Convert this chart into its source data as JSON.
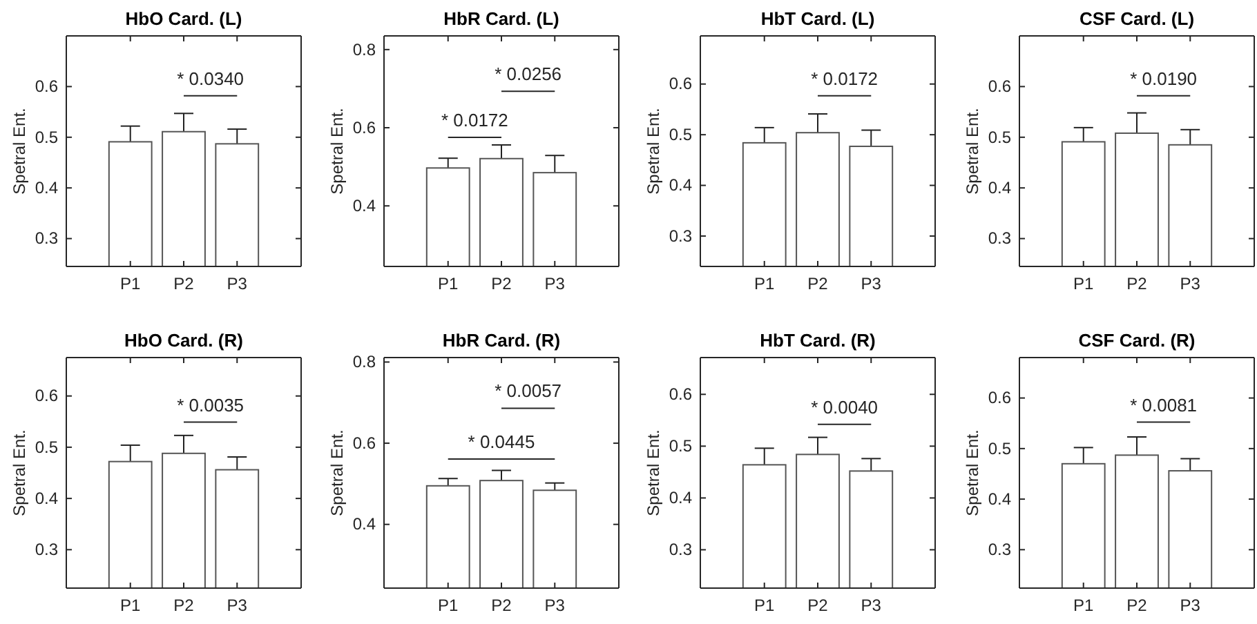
{
  "chart_data": [
    {
      "type": "bar",
      "title": "HbO Card. (L)",
      "ylabel": "Spetral Ent.",
      "categories": [
        "P1",
        "P2",
        "P3"
      ],
      "values": [
        0.491,
        0.511,
        0.487
      ],
      "errors": [
        0.031,
        0.036,
        0.029
      ],
      "color": "#ffffff",
      "ylim": [
        0.245,
        0.7
      ],
      "yticks": [
        0.3,
        0.4,
        0.5,
        0.6
      ],
      "annotations": [
        "* 0.0340"
      ]
    },
    {
      "type": "bar",
      "title": "HbR Card. (L)",
      "ylabel": "Spetral Ent.",
      "categories": [
        "P1",
        "P2",
        "P3"
      ],
      "values": [
        0.497,
        0.521,
        0.485
      ],
      "errors": [
        0.025,
        0.035,
        0.044
      ],
      "color": "#ffffff",
      "ylim": [
        0.245,
        0.835
      ],
      "yticks": [
        0.4,
        0.6,
        0.8
      ],
      "annotations": [
        "* 0.0172",
        "* 0.0256"
      ]
    },
    {
      "type": "bar",
      "title": "HbT Card. (L)",
      "ylabel": "Spetral Ent.",
      "categories": [
        "P1",
        "P2",
        "P3"
      ],
      "values": [
        0.484,
        0.504,
        0.477
      ],
      "errors": [
        0.03,
        0.037,
        0.032
      ],
      "color": "#ffffff",
      "ylim": [
        0.24,
        0.695
      ],
      "yticks": [
        0.3,
        0.4,
        0.5,
        0.6
      ],
      "annotations": [
        "* 0.0172"
      ]
    },
    {
      "type": "bar",
      "title": "CSF Card. (L)",
      "ylabel": "Spetral Ent.",
      "categories": [
        "P1",
        "P2",
        "P3"
      ],
      "values": [
        0.491,
        0.508,
        0.485
      ],
      "errors": [
        0.028,
        0.04,
        0.03
      ],
      "color": "#ffffff",
      "ylim": [
        0.245,
        0.7
      ],
      "yticks": [
        0.3,
        0.4,
        0.5,
        0.6
      ],
      "annotations": [
        "* 0.0190"
      ]
    },
    {
      "type": "bar",
      "title": "HbO Card. (R)",
      "ylabel": "Spetral Ent.",
      "categories": [
        "P1",
        "P2",
        "P3"
      ],
      "values": [
        0.472,
        0.488,
        0.456
      ],
      "errors": [
        0.032,
        0.035,
        0.025
      ],
      "color": "#ffffff",
      "ylim": [
        0.225,
        0.675
      ],
      "yticks": [
        0.3,
        0.4,
        0.5,
        0.6
      ],
      "annotations": [
        "* 0.0035"
      ]
    },
    {
      "type": "bar",
      "title": "HbR Card. (R)",
      "ylabel": "Spetral Ent.",
      "categories": [
        "P1",
        "P2",
        "P3"
      ],
      "values": [
        0.495,
        0.508,
        0.484
      ],
      "errors": [
        0.018,
        0.025,
        0.018
      ],
      "color": "#ffffff",
      "ylim": [
        0.243,
        0.811
      ],
      "yticks": [
        0.4,
        0.6,
        0.8
      ],
      "annotations": [
        "* 0.0057",
        "* 0.0445"
      ]
    },
    {
      "type": "bar",
      "title": "HbT Card. (R)",
      "ylabel": "Spetral Ent.",
      "categories": [
        "P1",
        "P2",
        "P3"
      ],
      "values": [
        0.464,
        0.484,
        0.452
      ],
      "errors": [
        0.032,
        0.033,
        0.024
      ],
      "color": "#ffffff",
      "ylim": [
        0.226,
        0.671
      ],
      "yticks": [
        0.3,
        0.4,
        0.5,
        0.6
      ],
      "annotations": [
        "* 0.0040"
      ]
    },
    {
      "type": "bar",
      "title": "CSF Card. (R)",
      "ylabel": "Spetral Ent.",
      "categories": [
        "P1",
        "P2",
        "P3"
      ],
      "values": [
        0.47,
        0.487,
        0.456
      ],
      "errors": [
        0.032,
        0.036,
        0.024
      ],
      "color": "#ffffff",
      "ylim": [
        0.224,
        0.68
      ],
      "yticks": [
        0.3,
        0.4,
        0.5,
        0.6
      ],
      "annotations": [
        "* 0.0081"
      ]
    }
  ]
}
